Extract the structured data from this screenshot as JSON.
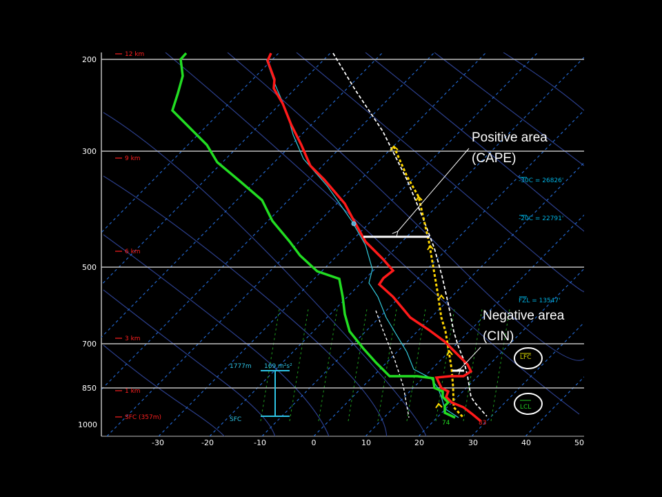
{
  "pressure_labels": [
    "200",
    "300",
    "500",
    "700",
    "850",
    "1000"
  ],
  "temp_labels": [
    "-30",
    "-20",
    "-10",
    "0",
    "10",
    "20",
    "30",
    "40",
    "50"
  ],
  "height_labels": [
    "12 km",
    "9 km",
    "6 km",
    "3 km",
    "1 km",
    "SFC (357m)"
  ],
  "levels": {
    "m30c": "-30C = 26826'",
    "m20c": "-20C = 22791'",
    "fzl": "FZL = 13547'",
    "lfc": "LFC",
    "lcl": "LCL"
  },
  "helicity": {
    "top_height": "1777m",
    "value": "169 m²s²",
    "bottom": "SFC"
  },
  "surface_values": {
    "dewpoint": "74",
    "temperature": "83"
  },
  "annotations": {
    "cape_line1": "Positive area",
    "cape_line2": "(CAPE)",
    "cin_line1": "Negative area",
    "cin_line2": "(CIN)"
  },
  "colors": {
    "temperature": "#ff1a1a",
    "dewpoint": "#22dd22",
    "parcel": "#ffd700",
    "virtual_temp": "#ffffff",
    "wetbulb": "#33ccdd",
    "isobar": "#bfbfbf",
    "isotherm": "#2266cc",
    "dry_adiabat": "#2c3f8c",
    "mixing_ratio": "#1fa01f"
  }
}
